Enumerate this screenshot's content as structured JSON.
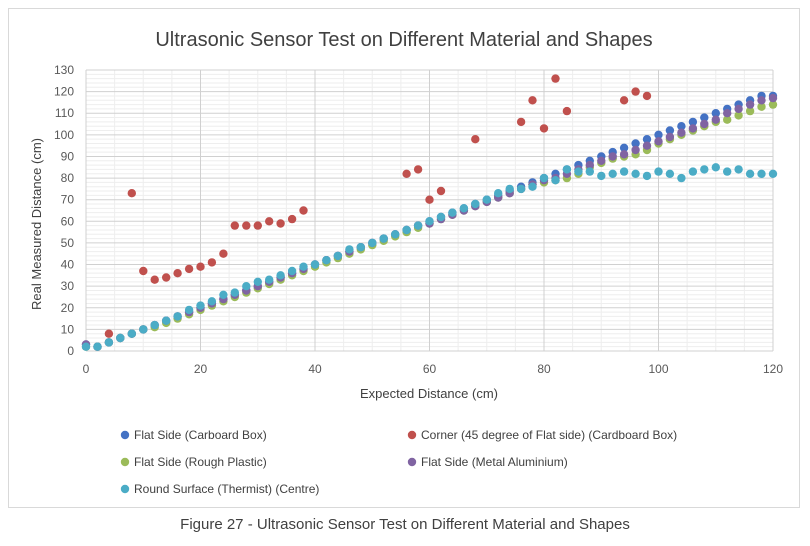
{
  "caption": "Figure 27 - Ultrasonic Sensor Test on Different Material and Shapes",
  "chart_data": {
    "type": "scatter",
    "title": "Ultrasonic Sensor Test on Different Material and Shapes",
    "xlabel": "Expected Distance (cm)",
    "ylabel": "Real Measured Distance (cm)",
    "xlim": [
      0,
      120
    ],
    "ylim": [
      0,
      130
    ],
    "x_ticks": [
      0,
      20,
      40,
      60,
      80,
      100,
      120
    ],
    "y_ticks": [
      0,
      10,
      20,
      30,
      40,
      50,
      60,
      70,
      80,
      90,
      100,
      110,
      120,
      130
    ],
    "grid": true,
    "legend_position": "bottom",
    "series": [
      {
        "name": "Flat Side (Carboard Box)",
        "color": "#4472c4",
        "points": [
          [
            0,
            3
          ],
          [
            2,
            2
          ],
          [
            4,
            4
          ],
          [
            6,
            6
          ],
          [
            8,
            8
          ],
          [
            10,
            10
          ],
          [
            12,
            12
          ],
          [
            14,
            14
          ],
          [
            16,
            16
          ],
          [
            18,
            18
          ],
          [
            20,
            20
          ],
          [
            22,
            22
          ],
          [
            24,
            24
          ],
          [
            26,
            26
          ],
          [
            28,
            28
          ],
          [
            30,
            30
          ],
          [
            32,
            32
          ],
          [
            34,
            34
          ],
          [
            36,
            36
          ],
          [
            38,
            38
          ],
          [
            40,
            40
          ],
          [
            42,
            42
          ],
          [
            44,
            44
          ],
          [
            46,
            46
          ],
          [
            48,
            48
          ],
          [
            50,
            50
          ],
          [
            52,
            52
          ],
          [
            54,
            54
          ],
          [
            56,
            56
          ],
          [
            58,
            58
          ],
          [
            60,
            60
          ],
          [
            62,
            62
          ],
          [
            64,
            64
          ],
          [
            66,
            66
          ],
          [
            68,
            68
          ],
          [
            70,
            70
          ],
          [
            72,
            72
          ],
          [
            74,
            74
          ],
          [
            76,
            76
          ],
          [
            78,
            78
          ],
          [
            80,
            80
          ],
          [
            82,
            82
          ],
          [
            84,
            84
          ],
          [
            86,
            86
          ],
          [
            88,
            88
          ],
          [
            90,
            90
          ],
          [
            92,
            92
          ],
          [
            94,
            94
          ],
          [
            96,
            96
          ],
          [
            98,
            98
          ],
          [
            100,
            100
          ],
          [
            102,
            102
          ],
          [
            104,
            104
          ],
          [
            106,
            106
          ],
          [
            108,
            108
          ],
          [
            110,
            110
          ],
          [
            112,
            112
          ],
          [
            114,
            114
          ],
          [
            116,
            116
          ],
          [
            118,
            118
          ],
          [
            120,
            118
          ]
        ]
      },
      {
        "name": "Corner (45 degree of Flat side) (Cardboard Box)",
        "color": "#c0504d",
        "points": [
          [
            4,
            8
          ],
          [
            8,
            73
          ],
          [
            10,
            37
          ],
          [
            12,
            33
          ],
          [
            14,
            34
          ],
          [
            16,
            36
          ],
          [
            18,
            38
          ],
          [
            20,
            39
          ],
          [
            22,
            41
          ],
          [
            24,
            45
          ],
          [
            26,
            58
          ],
          [
            28,
            58
          ],
          [
            30,
            58
          ],
          [
            32,
            60
          ],
          [
            34,
            59
          ],
          [
            36,
            61
          ],
          [
            38,
            65
          ],
          [
            56,
            82
          ],
          [
            58,
            84
          ],
          [
            60,
            70
          ],
          [
            62,
            74
          ],
          [
            68,
            98
          ],
          [
            76,
            106
          ],
          [
            78,
            116
          ],
          [
            80,
            103
          ],
          [
            82,
            126
          ],
          [
            84,
            111
          ],
          [
            94,
            116
          ],
          [
            96,
            120
          ],
          [
            98,
            118
          ]
        ]
      },
      {
        "name": "Flat Side (Rough Plastic)",
        "color": "#9bbb59",
        "points": [
          [
            0,
            2
          ],
          [
            2,
            2
          ],
          [
            4,
            4
          ],
          [
            6,
            6
          ],
          [
            8,
            8
          ],
          [
            10,
            10
          ],
          [
            12,
            11
          ],
          [
            14,
            13
          ],
          [
            16,
            15
          ],
          [
            18,
            17
          ],
          [
            20,
            19
          ],
          [
            22,
            21
          ],
          [
            24,
            23
          ],
          [
            26,
            25
          ],
          [
            28,
            27
          ],
          [
            30,
            29
          ],
          [
            32,
            31
          ],
          [
            34,
            33
          ],
          [
            36,
            35
          ],
          [
            38,
            37
          ],
          [
            40,
            39
          ],
          [
            42,
            41
          ],
          [
            44,
            43
          ],
          [
            46,
            45
          ],
          [
            48,
            47
          ],
          [
            50,
            49
          ],
          [
            52,
            51
          ],
          [
            54,
            53
          ],
          [
            56,
            55
          ],
          [
            58,
            57
          ],
          [
            60,
            59
          ],
          [
            62,
            61
          ],
          [
            64,
            63
          ],
          [
            66,
            65
          ],
          [
            68,
            67
          ],
          [
            70,
            69
          ],
          [
            72,
            71
          ],
          [
            74,
            73
          ],
          [
            76,
            75
          ],
          [
            78,
            77
          ],
          [
            80,
            78
          ],
          [
            82,
            79
          ],
          [
            84,
            80
          ],
          [
            86,
            82
          ],
          [
            88,
            85
          ],
          [
            90,
            87
          ],
          [
            92,
            89
          ],
          [
            94,
            90
          ],
          [
            96,
            91
          ],
          [
            98,
            93
          ],
          [
            100,
            96
          ],
          [
            102,
            98
          ],
          [
            104,
            100
          ],
          [
            106,
            102
          ],
          [
            108,
            104
          ],
          [
            110,
            106
          ],
          [
            112,
            107
          ],
          [
            114,
            109
          ],
          [
            116,
            111
          ],
          [
            118,
            113
          ],
          [
            120,
            114
          ]
        ]
      },
      {
        "name": "Flat Side (Metal Aluminium)",
        "color": "#8064a2",
        "points": [
          [
            0,
            3
          ],
          [
            2,
            2
          ],
          [
            4,
            4
          ],
          [
            6,
            6
          ],
          [
            8,
            8
          ],
          [
            10,
            10
          ],
          [
            12,
            12
          ],
          [
            14,
            14
          ],
          [
            16,
            16
          ],
          [
            18,
            18
          ],
          [
            20,
            20
          ],
          [
            22,
            22
          ],
          [
            24,
            24
          ],
          [
            26,
            26
          ],
          [
            28,
            28
          ],
          [
            30,
            30
          ],
          [
            32,
            32
          ],
          [
            34,
            34
          ],
          [
            36,
            36
          ],
          [
            38,
            38
          ],
          [
            40,
            40
          ],
          [
            42,
            42
          ],
          [
            44,
            44
          ],
          [
            46,
            46
          ],
          [
            48,
            48
          ],
          [
            50,
            50
          ],
          [
            52,
            52
          ],
          [
            54,
            54
          ],
          [
            56,
            56
          ],
          [
            58,
            58
          ],
          [
            60,
            59
          ],
          [
            62,
            61
          ],
          [
            64,
            63
          ],
          [
            66,
            65
          ],
          [
            68,
            67
          ],
          [
            70,
            69
          ],
          [
            72,
            71
          ],
          [
            74,
            73
          ],
          [
            76,
            75
          ],
          [
            78,
            77
          ],
          [
            80,
            79
          ],
          [
            82,
            80
          ],
          [
            84,
            82
          ],
          [
            86,
            84
          ],
          [
            88,
            86
          ],
          [
            90,
            88
          ],
          [
            92,
            90
          ],
          [
            94,
            91
          ],
          [
            96,
            93
          ],
          [
            98,
            95
          ],
          [
            100,
            97
          ],
          [
            102,
            99
          ],
          [
            104,
            101
          ],
          [
            106,
            103
          ],
          [
            108,
            105
          ],
          [
            110,
            107
          ],
          [
            112,
            110
          ],
          [
            114,
            112
          ],
          [
            116,
            114
          ],
          [
            118,
            116
          ],
          [
            120,
            117
          ]
        ]
      },
      {
        "name": "Round Surface (Thermist) (Centre)",
        "color": "#4bacc6",
        "points": [
          [
            0,
            2
          ],
          [
            2,
            2
          ],
          [
            4,
            4
          ],
          [
            6,
            6
          ],
          [
            8,
            8
          ],
          [
            10,
            10
          ],
          [
            12,
            12
          ],
          [
            14,
            14
          ],
          [
            16,
            16
          ],
          [
            18,
            19
          ],
          [
            20,
            21
          ],
          [
            22,
            23
          ],
          [
            24,
            26
          ],
          [
            26,
            27
          ],
          [
            28,
            30
          ],
          [
            30,
            32
          ],
          [
            32,
            33
          ],
          [
            34,
            35
          ],
          [
            36,
            37
          ],
          [
            38,
            39
          ],
          [
            40,
            40
          ],
          [
            42,
            42
          ],
          [
            44,
            44
          ],
          [
            46,
            47
          ],
          [
            48,
            48
          ],
          [
            50,
            50
          ],
          [
            52,
            52
          ],
          [
            54,
            54
          ],
          [
            56,
            56
          ],
          [
            58,
            58
          ],
          [
            60,
            60
          ],
          [
            62,
            62
          ],
          [
            64,
            64
          ],
          [
            66,
            66
          ],
          [
            68,
            68
          ],
          [
            70,
            70
          ],
          [
            72,
            73
          ],
          [
            74,
            75
          ],
          [
            76,
            75
          ],
          [
            78,
            76
          ],
          [
            80,
            80
          ],
          [
            82,
            79
          ],
          [
            84,
            84
          ],
          [
            86,
            83
          ],
          [
            88,
            83
          ],
          [
            90,
            81
          ],
          [
            92,
            82
          ],
          [
            94,
            83
          ],
          [
            96,
            82
          ],
          [
            98,
            81
          ],
          [
            100,
            83
          ],
          [
            102,
            82
          ],
          [
            104,
            80
          ],
          [
            106,
            83
          ],
          [
            108,
            84
          ],
          [
            110,
            85
          ],
          [
            112,
            83
          ],
          [
            114,
            84
          ],
          [
            116,
            82
          ],
          [
            118,
            82
          ],
          [
            120,
            82
          ]
        ]
      }
    ]
  }
}
